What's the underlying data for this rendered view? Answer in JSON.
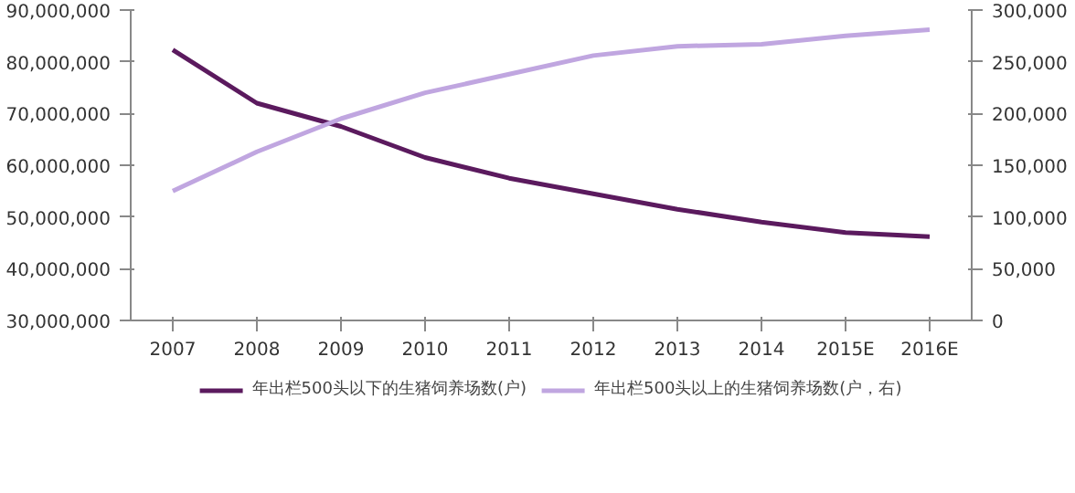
{
  "chart_data": {
    "type": "line",
    "categories": [
      "2007",
      "2008",
      "2009",
      "2010",
      "2011",
      "2012",
      "2013",
      "2014",
      "2015E",
      "2016E"
    ],
    "series": [
      {
        "name": "年出栏500头以下的生猪饲养场数(户)",
        "color": "#5b1a5e",
        "values": [
          82300000,
          72000000,
          67500000,
          61500000,
          57500000,
          54500000,
          51500000,
          49000000,
          47000000,
          46200000
        ]
      },
      {
        "name": "年出栏500头以上的生猪饲养场数(户，右)",
        "color": "#c0a6e0",
        "axis": "y2",
        "values": [
          125000,
          163000,
          195000,
          220000,
          238000,
          256000,
          265000,
          267000,
          275000,
          281000
        ]
      }
    ],
    "ylim": [
      30000000,
      90000000
    ],
    "yticks": [
      {
        "value": 30000000,
        "label": "30,000,000"
      },
      {
        "value": 40000000,
        "label": "40,000,000"
      },
      {
        "value": 50000000,
        "label": "50,000,000"
      },
      {
        "value": 60000000,
        "label": "60,000,000"
      },
      {
        "value": 70000000,
        "label": "70,000,000"
      },
      {
        "value": 80000000,
        "label": "80,000,000"
      },
      {
        "value": 90000000,
        "label": "90,000,000"
      }
    ],
    "y2lim": [
      0,
      300000
    ],
    "y2ticks": [
      0,
      {
        "value": 50000,
        "label": "50,000"
      },
      {
        "value": 100000,
        "label": "100,000"
      },
      {
        "value": 150000,
        "label": "150,000"
      },
      {
        "value": 200000,
        "label": "200,000"
      },
      {
        "value": 250000,
        "label": "250,000"
      },
      {
        "value": 300000,
        "label": "300,000"
      }
    ],
    "grid": false,
    "legend": "bottom",
    "marker": "none",
    "line_style": "solid"
  }
}
